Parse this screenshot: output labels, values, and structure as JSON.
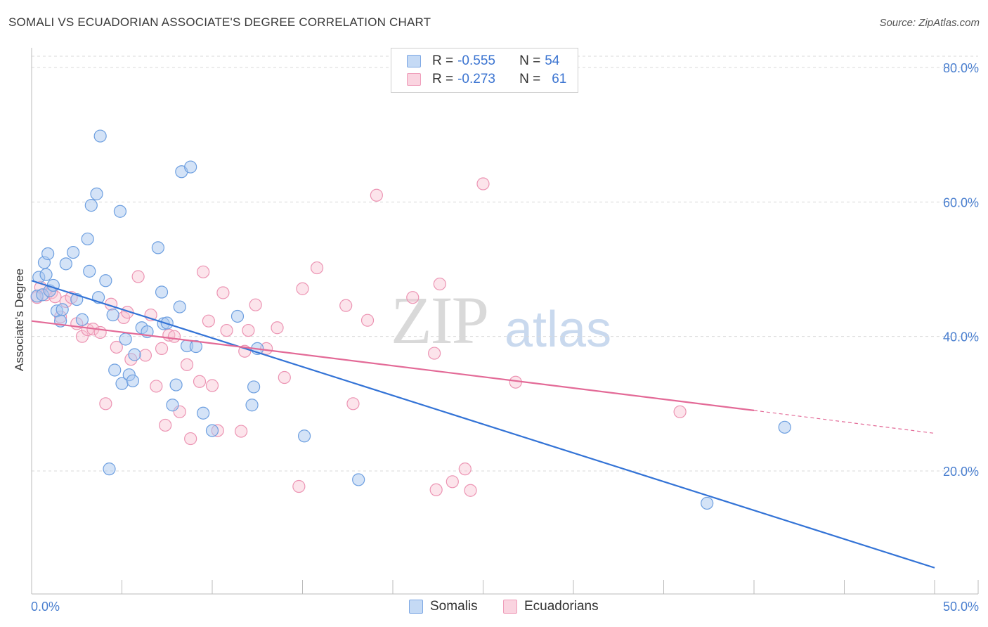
{
  "header": {
    "title": "SOMALI VS ECUADORIAN ASSOCIATE'S DEGREE CORRELATION CHART",
    "source": "Source: ZipAtlas.com"
  },
  "watermark": {
    "zip": "ZIP",
    "atlas": "atlas"
  },
  "legend_top": {
    "rows": [
      {
        "r_label": "R = ",
        "r_value": "-0.555",
        "n_label": "N = ",
        "n_value": "54",
        "color": "#8fb6ea"
      },
      {
        "r_label": "R = ",
        "r_value": "-0.273",
        "n_label": "N = ",
        "n_value": "61",
        "color": "#f2a7bf"
      }
    ]
  },
  "legend_bottom": {
    "somalis": "Somalis",
    "ecuadorians": "Ecuadorians"
  },
  "colors": {
    "somali_fill": "#a9c8f0",
    "somali_stroke": "#6d9fe0",
    "somali_line": "#3373d6",
    "ecuador_fill": "#f8c3d3",
    "ecuador_stroke": "#ec94b3",
    "ecuador_line": "#e36a97",
    "grid": "#d9d9d9",
    "tick_text": "#4a7fcf"
  },
  "chart_data": {
    "type": "scatter",
    "title": "SOMALI VS ECUADORIAN ASSOCIATE'S DEGREE CORRELATION CHART",
    "ylabel": "Associate's Degree",
    "xlabel": "",
    "xlim": [
      0,
      50
    ],
    "ylim": [
      0,
      84
    ],
    "x_ticks": [
      "0.0%",
      "50.0%"
    ],
    "y_ticks": [
      {
        "value": 20,
        "label": "20.0%"
      },
      {
        "value": 40,
        "label": "40.0%"
      },
      {
        "value": 60,
        "label": "60.0%"
      },
      {
        "value": 80,
        "label": "80.0%"
      }
    ],
    "grid": true,
    "series": [
      {
        "name": "Somalis",
        "points": [
          [
            0.3,
            46.0
          ],
          [
            0.4,
            48.8
          ],
          [
            0.6,
            46.2
          ],
          [
            0.7,
            51.0
          ],
          [
            0.8,
            49.2
          ],
          [
            0.9,
            52.3
          ],
          [
            1.0,
            46.8
          ],
          [
            1.2,
            47.6
          ],
          [
            1.4,
            43.8
          ],
          [
            1.6,
            42.3
          ],
          [
            1.7,
            44.0
          ],
          [
            1.9,
            50.8
          ],
          [
            2.3,
            52.5
          ],
          [
            2.5,
            45.5
          ],
          [
            2.8,
            42.5
          ],
          [
            3.1,
            54.5
          ],
          [
            3.2,
            49.7
          ],
          [
            3.3,
            59.5
          ],
          [
            3.6,
            61.2
          ],
          [
            3.7,
            45.8
          ],
          [
            3.8,
            69.8
          ],
          [
            4.1,
            48.3
          ],
          [
            4.3,
            20.3
          ],
          [
            4.5,
            43.2
          ],
          [
            4.6,
            35.0
          ],
          [
            4.9,
            58.6
          ],
          [
            5.0,
            33.0
          ],
          [
            5.2,
            39.6
          ],
          [
            5.4,
            34.3
          ],
          [
            5.6,
            33.4
          ],
          [
            5.7,
            37.3
          ],
          [
            6.1,
            41.3
          ],
          [
            6.4,
            40.7
          ],
          [
            7.0,
            53.2
          ],
          [
            7.2,
            46.6
          ],
          [
            7.3,
            41.9
          ],
          [
            7.5,
            42.0
          ],
          [
            7.8,
            29.8
          ],
          [
            8.0,
            32.8
          ],
          [
            8.2,
            44.4
          ],
          [
            8.3,
            64.5
          ],
          [
            8.6,
            38.6
          ],
          [
            8.8,
            65.2
          ],
          [
            9.1,
            38.5
          ],
          [
            9.5,
            28.6
          ],
          [
            10.0,
            26.0
          ],
          [
            11.4,
            43.0
          ],
          [
            12.2,
            29.8
          ],
          [
            12.3,
            32.5
          ],
          [
            12.5,
            38.2
          ],
          [
            15.1,
            25.2
          ],
          [
            18.1,
            18.7
          ],
          [
            41.7,
            26.5
          ],
          [
            37.4,
            15.2
          ]
        ]
      },
      {
        "name": "Ecuadorians",
        "points": [
          [
            0.3,
            45.8
          ],
          [
            0.5,
            47.3
          ],
          [
            0.8,
            46.2
          ],
          [
            1.1,
            46.5
          ],
          [
            1.3,
            45.9
          ],
          [
            1.6,
            42.9
          ],
          [
            1.9,
            45.2
          ],
          [
            2.2,
            45.8
          ],
          [
            2.5,
            41.9
          ],
          [
            2.8,
            40.0
          ],
          [
            3.1,
            41.0
          ],
          [
            3.4,
            41.1
          ],
          [
            3.8,
            40.6
          ],
          [
            4.1,
            30.0
          ],
          [
            4.4,
            44.8
          ],
          [
            4.7,
            38.4
          ],
          [
            5.1,
            42.8
          ],
          [
            5.3,
            43.6
          ],
          [
            5.5,
            36.6
          ],
          [
            5.9,
            48.9
          ],
          [
            6.3,
            37.2
          ],
          [
            6.6,
            43.2
          ],
          [
            6.9,
            32.6
          ],
          [
            7.2,
            38.2
          ],
          [
            7.4,
            26.8
          ],
          [
            7.6,
            40.2
          ],
          [
            7.9,
            40.0
          ],
          [
            8.2,
            28.8
          ],
          [
            8.6,
            35.8
          ],
          [
            8.8,
            24.8
          ],
          [
            9.3,
            33.3
          ],
          [
            9.5,
            49.6
          ],
          [
            9.8,
            42.3
          ],
          [
            10.0,
            32.7
          ],
          [
            10.3,
            26.0
          ],
          [
            10.6,
            46.5
          ],
          [
            10.8,
            40.9
          ],
          [
            11.6,
            25.9
          ],
          [
            11.8,
            37.8
          ],
          [
            12.0,
            40.9
          ],
          [
            12.4,
            44.7
          ],
          [
            13.0,
            38.2
          ],
          [
            13.6,
            41.3
          ],
          [
            14.0,
            33.9
          ],
          [
            14.8,
            17.7
          ],
          [
            15.0,
            47.1
          ],
          [
            15.8,
            50.2
          ],
          [
            17.4,
            44.6
          ],
          [
            17.8,
            30.0
          ],
          [
            18.6,
            42.4
          ],
          [
            19.1,
            61.0
          ],
          [
            21.1,
            45.8
          ],
          [
            22.3,
            37.5
          ],
          [
            22.4,
            17.2
          ],
          [
            22.6,
            47.8
          ],
          [
            23.3,
            18.4
          ],
          [
            24.0,
            20.3
          ],
          [
            24.3,
            17.1
          ],
          [
            25.0,
            62.7
          ],
          [
            26.8,
            33.2
          ],
          [
            35.9,
            28.8
          ]
        ]
      }
    ],
    "trend_lines": [
      {
        "series": "Somalis",
        "x0": 0,
        "y0": 48.3,
        "x1": 50,
        "y1": 5.6,
        "dashed_from": null
      },
      {
        "series": "Ecuadorians",
        "x0": 0,
        "y0": 42.3,
        "x1": 40,
        "y1": 29.0,
        "dashed_to_x": 50,
        "dashed_to_y": 25.6
      }
    ],
    "stats": [
      {
        "series": "Somalis",
        "R": -0.555,
        "N": 54
      },
      {
        "series": "Ecuadorians",
        "R": -0.273,
        "N": 61
      }
    ]
  }
}
